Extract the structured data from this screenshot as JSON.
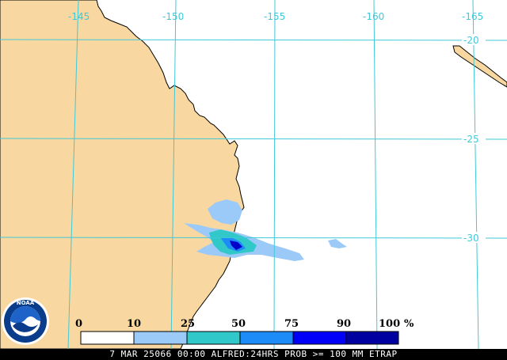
{
  "map": {
    "lon_labels": [
      "-145",
      "-150",
      "-155",
      "-160",
      "-165"
    ],
    "lat_labels": [
      "-20",
      "-25",
      "-30"
    ],
    "colors": {
      "land": "#f8d8a0",
      "ocean": "#ffffff",
      "grid": "#40c8d8",
      "coast": "#000000"
    }
  },
  "logo": {
    "text": "NOAA",
    "colors": {
      "outer": "#ffffff",
      "ring": "#0a3c8c",
      "inner_top": "#1e64c8"
    }
  },
  "legend": {
    "ticks": [
      "0",
      "10",
      "25",
      "50",
      "75",
      "90",
      "100"
    ],
    "unit": "%",
    "bins": [
      {
        "range": [
          0,
          10
        ],
        "color": "#ffffff"
      },
      {
        "range": [
          10,
          25
        ],
        "color": "#9ccaf8"
      },
      {
        "range": [
          25,
          50
        ],
        "color": "#30c8c8"
      },
      {
        "range": [
          50,
          75
        ],
        "color": "#1e8cf8"
      },
      {
        "range": [
          75,
          90
        ],
        "color": "#0000f8"
      },
      {
        "range": [
          90,
          100
        ],
        "color": "#0000a0"
      }
    ]
  },
  "caption": "7 MAR 25066 00:00 ALFRED:24HRS PROB >= 100 MM ETRAP"
}
